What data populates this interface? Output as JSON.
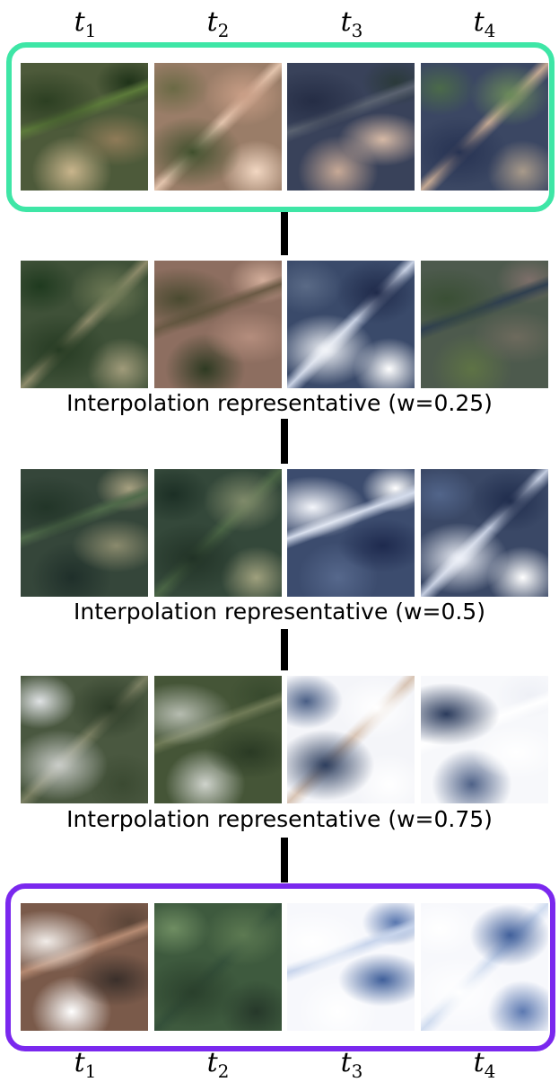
{
  "time_steps": [
    "t1",
    "t2",
    "t3",
    "t4"
  ],
  "time_labels": [
    {
      "var": "t",
      "sub": "1"
    },
    {
      "var": "t",
      "sub": "2"
    },
    {
      "var": "t",
      "sub": "3"
    },
    {
      "var": "t",
      "sub": "4"
    }
  ],
  "colors": {
    "anchor_start_frame": "#3ee6a6",
    "anchor_end_frame": "#7a28ee",
    "connector": "#000000"
  },
  "rows": [
    {
      "id": "anchor-start",
      "caption": "",
      "tiles": [
        {
          "base": "#4d5a3a",
          "patches": [
            "#2c3f22",
            "#8f7b58",
            "#5c7a3a",
            "#c9b58c",
            "#1f3319"
          ]
        },
        {
          "base": "#9a7d68",
          "patches": [
            "#3f4f2c",
            "#c99e86",
            "#e3c4ad",
            "#6b6a45",
            "#f2d7c2"
          ]
        },
        {
          "base": "#39425a",
          "patches": [
            "#252d45",
            "#d6b9a5",
            "#5a6270",
            "#c7a996",
            "#2b3a3a"
          ]
        },
        {
          "base": "#3b4763",
          "patches": [
            "#263252",
            "#6b8a5a",
            "#c4a893",
            "#4b6a4a",
            "#a89a8a"
          ]
        }
      ]
    },
    {
      "id": "w025",
      "caption": "Interpolation representative (w=0.25)",
      "tiles": [
        {
          "base": "#3f5138",
          "patches": [
            "#253a22",
            "#6f7a56",
            "#8d8a6a",
            "#1f3a1f",
            "#a09b7a"
          ]
        },
        {
          "base": "#8d6e60",
          "patches": [
            "#4a4a30",
            "#b48d7d",
            "#6b5a45",
            "#2e3a22",
            "#d2ad9a"
          ]
        },
        {
          "base": "#3a4a6a",
          "patches": [
            "#f2f4f8",
            "#1f2a4a",
            "#c9d2e4",
            "#5a6a86",
            "#ffffff"
          ]
        },
        {
          "base": "#4d5a4d",
          "patches": [
            "#3a4f35",
            "#6d6a5d",
            "#2f3f4f",
            "#5e7345",
            "#7d6f6a"
          ]
        }
      ]
    },
    {
      "id": "w05",
      "caption": "Interpolation representative (w=0.5)",
      "tiles": [
        {
          "base": "#35463a",
          "patches": [
            "#223528",
            "#8a8a6d",
            "#4f6a4a",
            "#1f2f2a",
            "#a6a080"
          ]
        },
        {
          "base": "#34483a",
          "patches": [
            "#213226",
            "#7f8a6a",
            "#4a6545",
            "#1c2f25",
            "#9fa07d"
          ]
        },
        {
          "base": "#3c4c6e",
          "patches": [
            "#f4f6fb",
            "#1e2a4e",
            "#d4dcec",
            "#56688c",
            "#ffffff"
          ]
        },
        {
          "base": "#3a4866",
          "patches": [
            "#eef1f8",
            "#1f2c4c",
            "#c4cde0",
            "#52658a",
            "#ffffff"
          ]
        }
      ]
    },
    {
      "id": "w075",
      "caption": "Interpolation representative (w=0.75)",
      "tiles": [
        {
          "base": "#4a5840",
          "patches": [
            "#c9ccc8",
            "#2b3a26",
            "#7a7f62",
            "#dfe2e4",
            "#3b4a32"
          ]
        },
        {
          "base": "#455537",
          "patches": [
            "#b6bcb0",
            "#2a3a24",
            "#6f7a56",
            "#cfd3cc",
            "#384a2e"
          ]
        },
        {
          "base": "#f4f5f9",
          "patches": [
            "#2e3f5f",
            "#ffffff",
            "#d8c4b4",
            "#4a5f86",
            "#ffffff"
          ]
        },
        {
          "base": "#f7f8fb",
          "patches": [
            "#2b3b5c",
            "#ffffff",
            "#ffffff",
            "#4f6288",
            "#eef0f6"
          ]
        }
      ]
    },
    {
      "id": "anchor-end",
      "caption": "",
      "tiles": [
        {
          "base": "#7a5a4a",
          "patches": [
            "#f1ece8",
            "#3a2f2a",
            "#b58a72",
            "#ffffff",
            "#5b4538"
          ]
        },
        {
          "base": "#3e5a3e",
          "patches": [
            "#2a402c",
            "#5d7a52",
            "#34503a",
            "#6f8d62",
            "#26382a"
          ]
        },
        {
          "base": "#f7f8fc",
          "patches": [
            "#ffffff",
            "#3f5f9a",
            "#c8d5ec",
            "#ffffff",
            "#5a78b0"
          ]
        },
        {
          "base": "#f7f8fc",
          "patches": [
            "#ffffff",
            "#41609b",
            "#d0dcef",
            "#ffffff",
            "#5c79b1"
          ]
        }
      ]
    }
  ]
}
